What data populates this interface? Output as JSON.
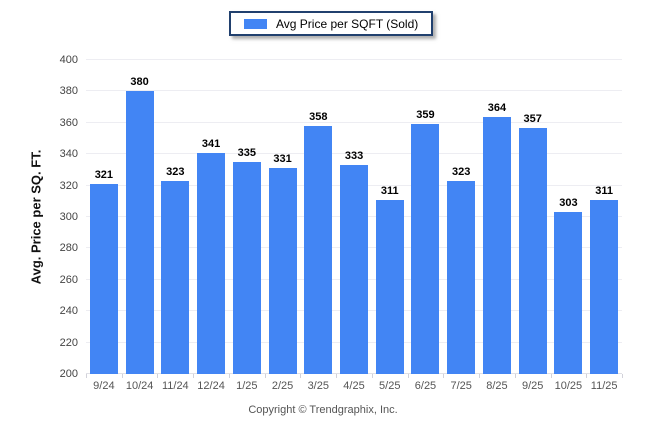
{
  "legend": {
    "label": "Avg Price per SQFT (Sold)",
    "swatch_color": "#4285f4"
  },
  "footer": {
    "text": "Copyright © Trendgraphix, Inc."
  },
  "colors": {
    "bar": "#4285f4",
    "legend_border": "#21406e",
    "grid": "#ededf2",
    "axis_text": "#555555",
    "value_label": "#000000"
  },
  "chart_data": {
    "type": "bar",
    "title": "",
    "series_name": "Avg Price per SQFT (Sold)",
    "categories": [
      "9/24",
      "10/24",
      "11/24",
      "12/24",
      "1/25",
      "2/25",
      "3/25",
      "4/25",
      "5/25",
      "6/25",
      "7/25",
      "8/25",
      "9/25",
      "10/25",
      "11/25"
    ],
    "values": [
      321,
      380,
      323,
      341,
      335,
      331,
      358,
      333,
      311,
      359,
      323,
      364,
      357,
      303,
      311
    ],
    "xlabel": "",
    "ylabel": "Avg. Price per SQ. FT.",
    "ylim": [
      200,
      400
    ],
    "ytick_step": 20,
    "y_ticks": [
      400,
      380,
      360,
      340,
      320,
      300,
      280,
      260,
      240,
      220,
      200
    ],
    "grid": true,
    "legend_position": "top-center",
    "value_labels": true
  }
}
